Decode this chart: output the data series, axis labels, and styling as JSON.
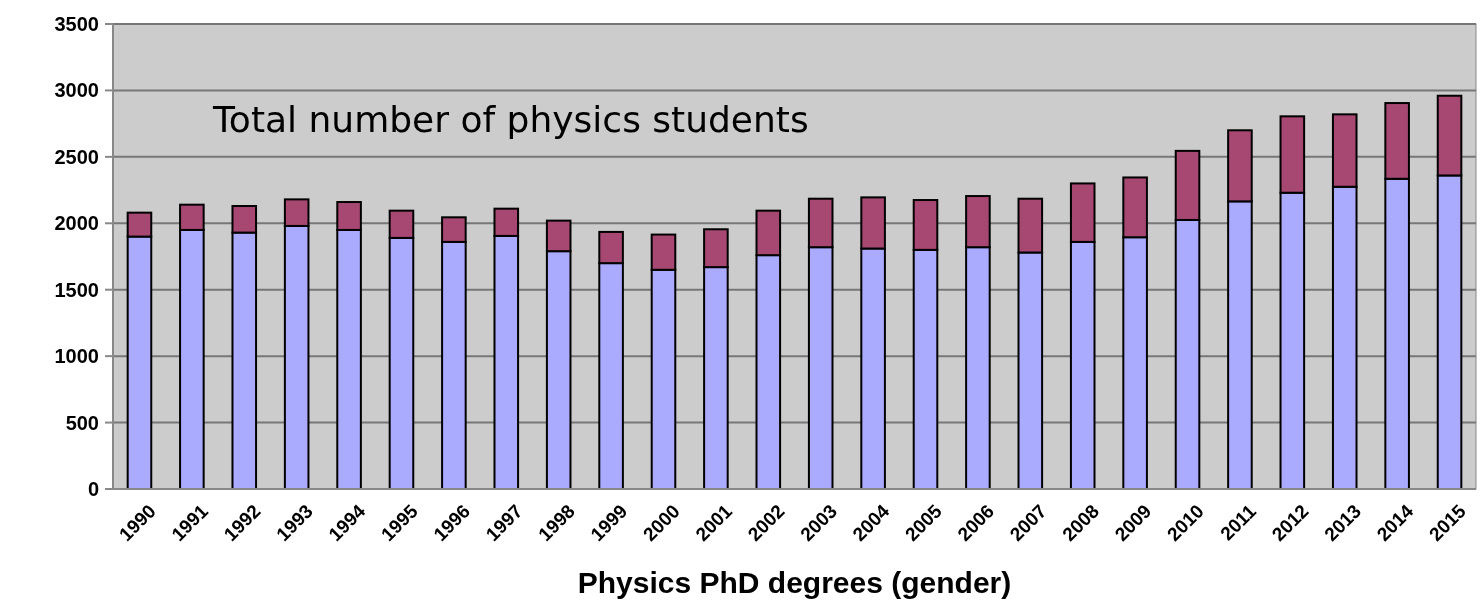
{
  "chart_data": {
    "type": "bar",
    "xlabel": "Physics PhD degrees (gender)",
    "annotations": [
      "Total number of physics students"
    ],
    "categories": [
      "1990",
      "1991",
      "1992",
      "1993",
      "1994",
      "1995",
      "1996",
      "1997",
      "1998",
      "1999",
      "2000",
      "2001",
      "2002",
      "2003",
      "2004",
      "2005",
      "2006",
      "2007",
      "2008",
      "2009",
      "2010",
      "2011",
      "2012",
      "2013",
      "2014",
      "2015"
    ],
    "stacked": true,
    "series": [
      {
        "color": "#aaaaff",
        "values": [
          1900,
          1950,
          1930,
          1980,
          1950,
          1890,
          1860,
          1905,
          1790,
          1700,
          1650,
          1670,
          1760,
          1820,
          1810,
          1800,
          1820,
          1780,
          1860,
          1895,
          2025,
          2165,
          2230,
          2275,
          2335,
          2360
        ]
      },
      {
        "color": "#a64872",
        "values": [
          180,
          190,
          200,
          200,
          210,
          205,
          185,
          205,
          230,
          235,
          265,
          285,
          335,
          365,
          385,
          375,
          385,
          405,
          440,
          450,
          520,
          535,
          575,
          545,
          570,
          600
        ]
      }
    ],
    "ylim": [
      0,
      3500
    ],
    "yticks": [
      0,
      500,
      1000,
      1500,
      2000,
      2500,
      3000,
      3500
    ],
    "grid": "y"
  }
}
